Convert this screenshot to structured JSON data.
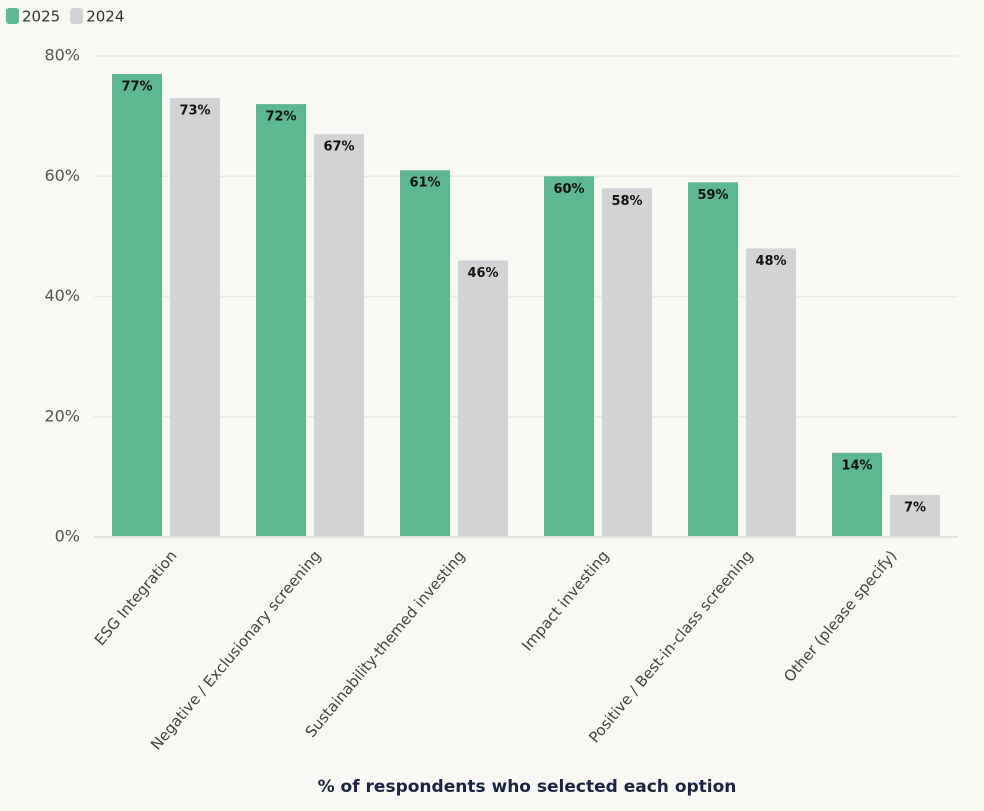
{
  "chart_data": {
    "type": "grouped-bar",
    "x_label": "% of respondents who selected each option",
    "categories": [
      "ESG Integration",
      "Negative / Exclusionary screening",
      "Sustainability-themed investing",
      "Impact investing",
      "Positive / Best-in-class screening",
      "Other (please specify)"
    ],
    "series": [
      {
        "name": "2025",
        "color": "#5db891",
        "values": [
          77,
          72,
          61,
          60,
          59,
          14
        ],
        "value_labels": [
          "77%",
          "72%",
          "61%",
          "60%",
          "59%",
          "14%"
        ]
      },
      {
        "name": "2024",
        "color": "#d2d3d5",
        "values": [
          73,
          67,
          46,
          58,
          48,
          7
        ],
        "value_labels": [
          "73%",
          "67%",
          "46%",
          "58%",
          "48%",
          "7%"
        ]
      }
    ],
    "ylim": [
      0,
      80
    ],
    "yticks": [
      {
        "value": 0,
        "label": "0%"
      },
      {
        "value": 20,
        "label": "20%"
      },
      {
        "value": 40,
        "label": "40%"
      },
      {
        "value": 60,
        "label": "60%"
      },
      {
        "value": 80,
        "label": "80%"
      }
    ],
    "grid": true,
    "legend": "top-left"
  }
}
